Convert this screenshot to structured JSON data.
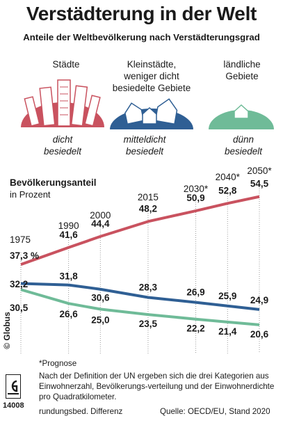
{
  "title": "Verstädterung in der Welt",
  "subtitle": "Anteile der Weltbevölkerung nach Verstädterungsgrad",
  "categories": [
    {
      "name": "Städte",
      "density": "dicht\nbesiedelt",
      "color": "#c9525f",
      "icon": "city-skyscrapers-icon"
    },
    {
      "name": "Kleinstädte,\nweniger dicht\nbesiedelte Gebiete",
      "density": "mitteldicht\nbesiedelt",
      "color": "#2f5f94",
      "icon": "town-houses-icon"
    },
    {
      "name": "ländliche\nGebiete",
      "density": "dünn\nbesiedelt",
      "color": "#6fbb98",
      "icon": "rural-house-icon"
    }
  ],
  "chart_data": {
    "type": "line",
    "title": "Bevölkerungsanteil",
    "ylabel": "in Prozent",
    "x": [
      "1975",
      "1990",
      "2000",
      "2015",
      "2030*",
      "2040*",
      "2050*"
    ],
    "x_values": [
      1975,
      1990,
      2000,
      2015,
      2030,
      2040,
      2050
    ],
    "series": [
      {
        "key": "staedte",
        "color": "#c9525f",
        "values": [
          37.3,
          41.6,
          44.4,
          48.2,
          50.9,
          52.8,
          54.5
        ],
        "labels": [
          "37,3 %",
          "41,6",
          "44,4",
          "48,2",
          "50,9",
          "52,8",
          "54,5"
        ]
      },
      {
        "key": "kleinstaedte",
        "color": "#2f5f94",
        "values": [
          32.2,
          31.8,
          30.6,
          28.3,
          26.9,
          25.9,
          24.9
        ],
        "labels": [
          "32,2",
          "31,8",
          "30,6",
          "28,3",
          "26,9",
          "25,9",
          "24,9"
        ]
      },
      {
        "key": "laendlich",
        "color": "#6fbb98",
        "values": [
          30.5,
          26.6,
          25.0,
          23.5,
          22.2,
          21.4,
          20.6
        ],
        "labels": [
          "30,5",
          "26,6",
          "25,0",
          "23,5",
          "22,2",
          "21,4",
          "20,6"
        ]
      }
    ]
  },
  "footnotes": {
    "prognose": "*Prognose",
    "definition": "Nach der Definition der UN ergeben sich die drei Kategorien aus Einwohnerzahl, Bevölkerungs-verteilung und der Einwohnerdichte pro Quadratkilometer.",
    "rounding": "rundungsbed. Differenz",
    "source": "Quelle: OECD/EU, Stand 2020",
    "credit": "© Globus",
    "number": "14008"
  }
}
